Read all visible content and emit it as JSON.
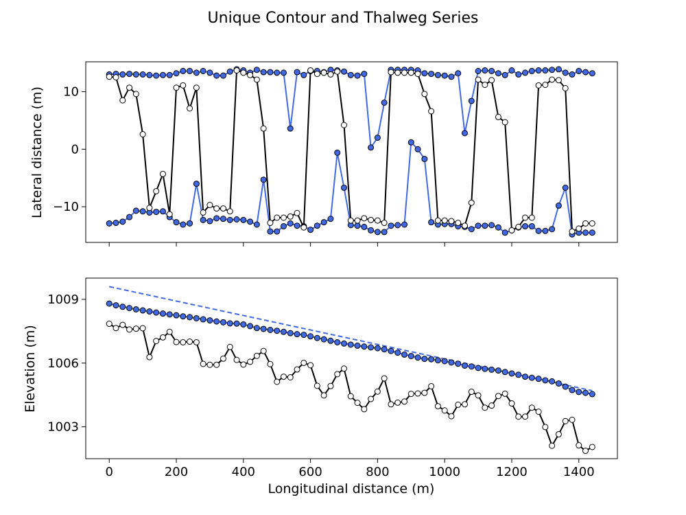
{
  "chart_data": {
    "type": "line",
    "title": "Unique Contour and Thalweg Series",
    "colors": {
      "contour": "#4169e1",
      "thalweg": "#000000",
      "thalweg_fill": "#ffffff",
      "marker_edge": "#000000"
    },
    "panels": [
      {
        "name": "lateral",
        "ylabel": "Lateral distance (m)",
        "xlim": [
          -70,
          1515
        ],
        "ylim": [
          -16.2,
          15.2
        ],
        "yticks": [
          -10,
          0,
          10
        ],
        "xticks": [
          0,
          200,
          400,
          600,
          800,
          1000,
          1200,
          1400
        ],
        "series": [
          {
            "role": "contour-upper",
            "x": [
              0,
              20,
              40,
              60,
              80,
              100,
              120,
              140,
              160,
              180,
              200,
              220,
              240,
              260,
              280,
              300,
              320,
              340,
              360,
              380,
              400,
              420,
              440,
              460,
              480,
              500,
              520,
              540,
              560,
              580,
              600,
              620,
              640,
              660,
              680,
              700,
              720,
              740,
              760,
              780,
              800,
              820,
              840,
              860,
              880,
              900,
              920,
              940,
              960,
              980,
              1000,
              1020,
              1040,
              1060,
              1080,
              1100,
              1120,
              1140,
              1160,
              1180,
              1200,
              1220,
              1240,
              1260,
              1280,
              1300,
              1320,
              1340,
              1360,
              1380,
              1400,
              1420,
              1440
            ],
            "y": [
              13.0,
              13.1,
              13.0,
              13.1,
              13.0,
              13.0,
              12.9,
              12.8,
              12.9,
              12.9,
              13.2,
              13.6,
              13.6,
              13.3,
              13.6,
              13.3,
              12.8,
              12.8,
              13.5,
              13.9,
              13.7,
              13.3,
              13.8,
              13.4,
              13.4,
              13.3,
              13.3,
              3.6,
              13.4,
              12.9,
              13.6,
              13.6,
              13.4,
              13.8,
              13.7,
              13.5,
              12.9,
              12.8,
              13.1,
              0.3,
              2.0,
              8.1,
              13.8,
              13.8,
              13.8,
              13.8,
              13.7,
              13.2,
              13.1,
              12.9,
              12.8,
              12.6,
              13.2,
              2.8,
              8.4,
              13.6,
              13.7,
              13.6,
              13.2,
              12.9,
              13.7,
              13.0,
              13.3,
              13.6,
              13.7,
              13.7,
              13.8,
              13.9,
              13.3,
              13.0,
              13.6,
              13.4,
              13.2
            ]
          },
          {
            "role": "contour-lower",
            "x": [
              0,
              20,
              40,
              60,
              80,
              100,
              120,
              140,
              160,
              180,
              200,
              220,
              240,
              260,
              280,
              300,
              320,
              340,
              360,
              380,
              400,
              420,
              440,
              460,
              480,
              500,
              520,
              540,
              560,
              580,
              600,
              620,
              640,
              660,
              680,
              700,
              720,
              740,
              760,
              780,
              800,
              820,
              840,
              860,
              880,
              900,
              920,
              940,
              960,
              980,
              1000,
              1020,
              1040,
              1060,
              1080,
              1100,
              1120,
              1140,
              1160,
              1180,
              1200,
              1220,
              1240,
              1260,
              1280,
              1300,
              1320,
              1340,
              1360,
              1380,
              1400,
              1420,
              1440
            ],
            "y": [
              -12.9,
              -12.8,
              -12.6,
              -11.8,
              -10.7,
              -10.8,
              -11.0,
              -10.9,
              -10.8,
              -11.8,
              -12.7,
              -13.1,
              -12.9,
              -6.0,
              -12.3,
              -12.5,
              -12.0,
              -12.1,
              -12.3,
              -12.2,
              -12.3,
              -12.6,
              -13.1,
              -5.3,
              -14.3,
              -14.3,
              -13.4,
              -12.9,
              -13.3,
              -13.4,
              -14.0,
              -13.3,
              -12.7,
              -12.1,
              -0.6,
              -6.7,
              -13.2,
              -13.3,
              -13.5,
              -14.1,
              -14.4,
              -14.4,
              -13.3,
              -13.2,
              -13.1,
              1.2,
              0.0,
              -1.7,
              -12.7,
              -13.1,
              -13.0,
              -13.0,
              -13.4,
              -13.5,
              -13.9,
              -13.3,
              -13.3,
              -13.2,
              -13.6,
              -14.5,
              -14.1,
              -13.6,
              -13.4,
              -13.4,
              -14.2,
              -14.2,
              -13.9,
              -9.8,
              -6.7,
              -14.8,
              -14.5,
              -14.5,
              -14.5
            ]
          },
          {
            "role": "thalweg",
            "x": [
              0,
              20,
              40,
              60,
              80,
              100,
              120,
              140,
              160,
              180,
              200,
              220,
              240,
              260,
              280,
              300,
              320,
              340,
              360,
              380,
              400,
              420,
              440,
              460,
              480,
              500,
              520,
              540,
              560,
              580,
              600,
              620,
              640,
              660,
              680,
              700,
              720,
              740,
              760,
              780,
              800,
              820,
              840,
              860,
              880,
              900,
              920,
              940,
              960,
              980,
              1000,
              1020,
              1040,
              1060,
              1080,
              1100,
              1120,
              1140,
              1160,
              1180,
              1200,
              1220,
              1240,
              1260,
              1280,
              1300,
              1320,
              1340,
              1360,
              1380,
              1400,
              1420,
              1440
            ],
            "y": [
              12.6,
              12.5,
              8.5,
              10.7,
              9.6,
              2.6,
              -10.2,
              -7.3,
              -4.3,
              -11.3,
              10.7,
              11.1,
              7.1,
              10.7,
              -11.0,
              -9.7,
              -10.3,
              -10.3,
              -10.8,
              13.7,
              13.3,
              12.9,
              12.1,
              3.6,
              -12.8,
              -11.9,
              -11.9,
              -11.7,
              -11.1,
              -13.6,
              13.7,
              13.1,
              13.3,
              13.0,
              13.5,
              4.2,
              -12.4,
              -12.4,
              -12.0,
              -12.3,
              -12.4,
              -12.8,
              13.4,
              13.3,
              13.3,
              13.3,
              13.1,
              9.6,
              6.6,
              -12.4,
              -12.4,
              -12.5,
              -12.8,
              -13.3,
              -9.3,
              12.1,
              11.2,
              12.0,
              5.6,
              4.7,
              -14.1,
              -13.5,
              -11.9,
              -11.9,
              11.1,
              11.2,
              12.1,
              12.0,
              10.6,
              -14.3,
              -13.8,
              -12.9,
              -12.9
            ]
          }
        ]
      },
      {
        "name": "elevation",
        "xlabel": "Longitudinal distance (m)",
        "ylabel": "Elevation (m)",
        "xlim": [
          -70,
          1515
        ],
        "ylim": [
          1001.5,
          1010.0
        ],
        "yticks": [
          1003,
          1006,
          1009
        ],
        "xticks": [
          0,
          200,
          400,
          600,
          800,
          1000,
          1200,
          1400
        ],
        "series": [
          {
            "role": "trend",
            "style": "dashed",
            "x": [
              0,
              1440
            ],
            "y": [
              1009.6,
              1004.7
            ]
          },
          {
            "role": "contour",
            "x": [
              0,
              20,
              40,
              60,
              80,
              100,
              120,
              140,
              160,
              180,
              200,
              220,
              240,
              260,
              280,
              300,
              320,
              340,
              360,
              380,
              400,
              420,
              440,
              460,
              480,
              500,
              520,
              540,
              560,
              580,
              600,
              620,
              640,
              660,
              680,
              700,
              720,
              740,
              760,
              780,
              800,
              820,
              840,
              860,
              880,
              900,
              920,
              940,
              960,
              980,
              1000,
              1020,
              1040,
              1060,
              1080,
              1100,
              1120,
              1140,
              1160,
              1180,
              1200,
              1220,
              1240,
              1260,
              1280,
              1300,
              1320,
              1340,
              1360,
              1380,
              1400,
              1420,
              1440
            ],
            "y": [
              1008.8,
              1008.72,
              1008.65,
              1008.59,
              1008.53,
              1008.48,
              1008.43,
              1008.38,
              1008.33,
              1008.29,
              1008.25,
              1008.2,
              1008.16,
              1008.11,
              1008.06,
              1008.01,
              1007.96,
              1007.92,
              1007.87,
              1007.86,
              1007.82,
              1007.74,
              1007.65,
              1007.61,
              1007.56,
              1007.52,
              1007.47,
              1007.41,
              1007.36,
              1007.33,
              1007.26,
              1007.18,
              1007.12,
              1007.05,
              1006.98,
              1006.92,
              1006.87,
              1006.82,
              1006.78,
              1006.74,
              1006.7,
              1006.65,
              1006.57,
              1006.49,
              1006.4,
              1006.33,
              1006.26,
              1006.2,
              1006.18,
              1006.13,
              1006.09,
              1006.03,
              1005.97,
              1005.88,
              1005.84,
              1005.77,
              1005.73,
              1005.69,
              1005.65,
              1005.58,
              1005.51,
              1005.45,
              1005.36,
              1005.31,
              1005.26,
              1005.19,
              1005.14,
              1005.04,
              1004.89,
              1004.73,
              1004.64,
              1004.6,
              1004.54
            ]
          },
          {
            "role": "thalweg",
            "x": [
              0,
              20,
              40,
              60,
              80,
              100,
              120,
              140,
              160,
              180,
              200,
              220,
              240,
              260,
              280,
              300,
              320,
              340,
              360,
              380,
              400,
              420,
              440,
              460,
              480,
              500,
              520,
              540,
              560,
              580,
              600,
              620,
              640,
              660,
              680,
              700,
              720,
              740,
              760,
              780,
              800,
              820,
              840,
              860,
              880,
              900,
              920,
              940,
              960,
              980,
              1000,
              1020,
              1040,
              1060,
              1080,
              1100,
              1120,
              1140,
              1160,
              1180,
              1200,
              1220,
              1240,
              1260,
              1280,
              1300,
              1320,
              1340,
              1360,
              1380,
              1400,
              1420,
              1440
            ],
            "y": [
              1007.85,
              1007.65,
              1007.8,
              1007.58,
              1007.62,
              1007.64,
              1006.28,
              1007.04,
              1007.21,
              1007.47,
              1006.99,
              1006.98,
              1007.01,
              1006.98,
              1005.96,
              1005.92,
              1005.92,
              1006.21,
              1006.76,
              1006.15,
              1005.93,
              1006.06,
              1006.34,
              1006.57,
              1005.95,
              1005.12,
              1005.36,
              1005.33,
              1005.7,
              1006.01,
              1005.9,
              1004.93,
              1004.48,
              1004.92,
              1005.48,
              1005.74,
              1004.44,
              1004.13,
              1003.83,
              1004.31,
              1004.66,
              1005.28,
              1004.06,
              1004.14,
              1004.19,
              1004.55,
              1004.57,
              1004.6,
              1004.91,
              1003.97,
              1003.77,
              1003.5,
              1004.04,
              1004.06,
              1004.65,
              1004.48,
              1003.9,
              1004.0,
              1004.45,
              1004.56,
              1004.1,
              1003.48,
              1003.48,
              1003.9,
              1003.71,
              1002.99,
              1002.11,
              1002.65,
              1003.27,
              1003.33,
              1002.13,
              1001.87,
              1002.05
            ]
          }
        ]
      }
    ]
  }
}
